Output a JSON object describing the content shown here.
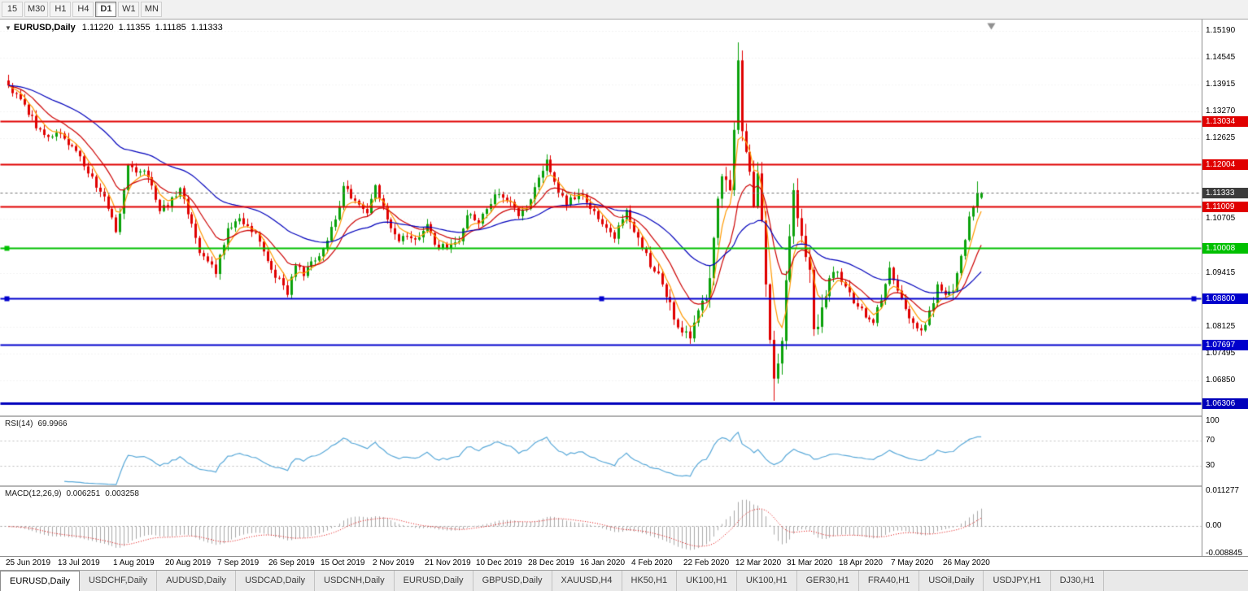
{
  "toolbar": {
    "timeframes": [
      "15",
      "M30",
      "H1",
      "H4",
      "D1",
      "W1",
      "MN"
    ],
    "active": "D1"
  },
  "chart": {
    "title": "EURUSD,Daily",
    "open": "1.11220",
    "high": "1.11355",
    "low": "1.11185",
    "close": "1.11333"
  },
  "price_axis": {
    "ticks": [
      "1.15190",
      "1.14545",
      "1.13915",
      "1.13270",
      "1.12625",
      "1.10705",
      "1.09415",
      "1.08125",
      "1.07495",
      "1.06850"
    ],
    "current_price": {
      "label": "1.11333",
      "value": 1.11333,
      "bg": "#3c3c3c"
    }
  },
  "levels": [
    {
      "price": 1.13034,
      "label": "1.13034",
      "color": "#e00000",
      "width": 2,
      "handles": []
    },
    {
      "price": 1.12004,
      "label": "1.12004",
      "color": "#e00000",
      "width": 2,
      "handles": []
    },
    {
      "price": 1.11009,
      "label": "1.11009",
      "color": "#e00000",
      "width": 2,
      "handles": []
    },
    {
      "price": 1.10008,
      "label": "1.10008",
      "color": "#00c000",
      "width": 2,
      "handles": [
        "left"
      ]
    },
    {
      "price": 1.088,
      "label": "1.08800",
      "color": "#0000cc",
      "width": 2,
      "handles": [
        "left",
        "center",
        "right"
      ]
    },
    {
      "price": 1.07697,
      "label": "1.07697",
      "color": "#0000cc",
      "width": 2,
      "handles": []
    },
    {
      "price": 1.06306,
      "label": "1.06306",
      "color": "#0000bb",
      "width": 3,
      "handles": []
    }
  ],
  "rsi_panel": {
    "name": "RSI(14)",
    "value": "69.9966",
    "axis": [
      100,
      70,
      30
    ],
    "guide_levels": [
      70,
      30
    ],
    "line_color": "#58a8d8"
  },
  "macd_panel": {
    "name": "MACD(12,26,9)",
    "value_main": "0.006251",
    "value_signal": "0.003258",
    "axis": [
      "0.011277",
      "0.00",
      "-0.008845"
    ],
    "histogram_color": "#a8a8a8",
    "signal_color": "#e00000"
  },
  "time_axis": {
    "labels": [
      [
        0,
        "25 Jun 2019"
      ],
      [
        13,
        "13 Jul 2019"
      ],
      [
        27,
        "1 Aug 2019"
      ],
      [
        40,
        "20 Aug 2019"
      ],
      [
        53,
        "7 Sep 2019"
      ],
      [
        66,
        "26 Sep 2019"
      ],
      [
        79,
        "15 Oct 2019"
      ],
      [
        92,
        "2 Nov 2019"
      ],
      [
        105,
        "21 Nov 2019"
      ],
      [
        118,
        "10 Dec 2019"
      ],
      [
        131,
        "28 Dec 2019"
      ],
      [
        144,
        "16 Jan 2020"
      ],
      [
        157,
        "4 Feb 2020"
      ],
      [
        170,
        "22 Feb 2020"
      ],
      [
        183,
        "12 Mar 2020"
      ],
      [
        196,
        "31 Mar 2020"
      ],
      [
        209,
        "18 Apr 2020"
      ],
      [
        222,
        "7 May 2020"
      ],
      [
        235,
        "26 May 2020"
      ]
    ]
  },
  "tabs": [
    {
      "label": "EURUSD,Daily",
      "active": true
    },
    {
      "label": "USDCHF,Daily"
    },
    {
      "label": "AUDUSD,Daily"
    },
    {
      "label": "USDCAD,Daily"
    },
    {
      "label": "USDCNH,Daily"
    },
    {
      "label": "EURUSD,Daily"
    },
    {
      "label": "GBPUSD,Daily"
    },
    {
      "label": "XAUUSD,H4"
    },
    {
      "label": "HK50,H1"
    },
    {
      "label": "UK100,H1"
    },
    {
      "label": "UK100,H1"
    },
    {
      "label": "GER30,H1"
    },
    {
      "label": "FRA40,H1"
    },
    {
      "label": "USOil,Daily"
    },
    {
      "label": "USDJPY,H1"
    },
    {
      "label": "DJ30,H1"
    }
  ],
  "chart_data": {
    "type": "candlestick",
    "symbol": "EURUSD",
    "timeframe": "Daily",
    "title": "EURUSD,Daily",
    "last_ohlc": {
      "open": 1.1122,
      "high": 1.11355,
      "low": 1.11185,
      "close": 1.11333
    },
    "y_range": [
      1.0605,
      1.1537
    ],
    "bars": 245,
    "x_start": 10,
    "x_step": 4.9,
    "close_waypoints": [
      [
        0,
        1.139
      ],
      [
        2,
        1.137
      ],
      [
        5,
        1.132
      ],
      [
        8,
        1.1285
      ],
      [
        11,
        1.1268
      ],
      [
        13,
        1.1275
      ],
      [
        16,
        1.1245
      ],
      [
        18,
        1.1221
      ],
      [
        20,
        1.118
      ],
      [
        22,
        1.1146
      ],
      [
        24,
        1.1125
      ],
      [
        26,
        1.1075
      ],
      [
        27,
        1.104
      ],
      [
        28,
        1.1084
      ],
      [
        30,
        1.12
      ],
      [
        33,
        1.1185
      ],
      [
        35,
        1.1171
      ],
      [
        38,
        1.109
      ],
      [
        40,
        1.11
      ],
      [
        43,
        1.1145
      ],
      [
        46,
        1.106
      ],
      [
        48,
        1.099
      ],
      [
        50,
        1.097
      ],
      [
        52,
        1.094
      ],
      [
        55,
        1.1049
      ],
      [
        58,
        1.1073
      ],
      [
        61,
        1.104
      ],
      [
        63,
        1.1017
      ],
      [
        66,
        1.095
      ],
      [
        68,
        1.093
      ],
      [
        70,
        1.089
      ],
      [
        72,
        1.096
      ],
      [
        74,
        1.0935
      ],
      [
        76,
        1.097
      ],
      [
        79,
        1.1
      ],
      [
        82,
        1.107
      ],
      [
        84,
        1.115
      ],
      [
        87,
        1.1115
      ],
      [
        90,
        1.1085
      ],
      [
        92,
        1.1152
      ],
      [
        95,
        1.107
      ],
      [
        98,
        1.1018
      ],
      [
        100,
        1.103
      ],
      [
        102,
        1.1022
      ],
      [
        105,
        1.1059
      ],
      [
        107,
        1.101
      ],
      [
        110,
        1.1
      ],
      [
        113,
        1.1018
      ],
      [
        115,
        1.108
      ],
      [
        118,
        1.106
      ],
      [
        120,
        1.1095
      ],
      [
        122,
        1.113
      ],
      [
        125,
        1.1115
      ],
      [
        128,
        1.1078
      ],
      [
        131,
        1.1118
      ],
      [
        133,
        1.117
      ],
      [
        135,
        1.1213
      ],
      [
        137,
        1.116
      ],
      [
        140,
        1.1105
      ],
      [
        143,
        1.113
      ],
      [
        145,
        1.111
      ],
      [
        147,
        1.109
      ],
      [
        150,
        1.105
      ],
      [
        152,
        1.1024
      ],
      [
        155,
        1.1093
      ],
      [
        157,
        1.104
      ],
      [
        159,
        1.1
      ],
      [
        162,
        1.0946
      ],
      [
        164,
        1.0915
      ],
      [
        167,
        1.0831
      ],
      [
        169,
        1.08
      ],
      [
        171,
        1.0786
      ],
      [
        173,
        1.0853
      ],
      [
        175,
        1.088
      ],
      [
        177,
        1.1026
      ],
      [
        179,
        1.1173
      ],
      [
        181,
        1.114
      ],
      [
        182,
        1.1284
      ],
      [
        183,
        1.145
      ],
      [
        184,
        1.1281
      ],
      [
        186,
        1.1184
      ],
      [
        187,
        1.11
      ],
      [
        188,
        1.118
      ],
      [
        190,
        1.0915
      ],
      [
        192,
        1.069
      ],
      [
        193,
        1.0726
      ],
      [
        194,
        1.078
      ],
      [
        196,
        1.103
      ],
      [
        197,
        1.114
      ],
      [
        199,
        1.1031
      ],
      [
        201,
        1.095
      ],
      [
        202,
        1.0808
      ],
      [
        204,
        1.086
      ],
      [
        206,
        1.093
      ],
      [
        208,
        1.0945
      ],
      [
        210,
        1.091
      ],
      [
        212,
        1.087
      ],
      [
        214,
        1.0858
      ],
      [
        217,
        1.0823
      ],
      [
        219,
        1.0877
      ],
      [
        221,
        1.0955
      ],
      [
        223,
        1.09
      ],
      [
        226,
        1.0834
      ],
      [
        228,
        1.081
      ],
      [
        230,
        1.0818
      ],
      [
        232,
        1.087
      ],
      [
        233,
        1.0915
      ],
      [
        235,
        1.089
      ],
      [
        237,
        1.09
      ],
      [
        239,
        1.0983
      ],
      [
        240,
        1.1021
      ],
      [
        241,
        1.1077
      ],
      [
        242,
        1.1101
      ],
      [
        243,
        1.1134
      ],
      [
        244,
        1.11333
      ]
    ],
    "volatility": [
      {
        "from": 0,
        "vol": 0.0016
      },
      {
        "from": 155,
        "vol": 0.0024
      },
      {
        "from": 176,
        "vol": 0.004
      },
      {
        "from": 206,
        "vol": 0.002
      }
    ],
    "wick_overrides": {
      "183": {
        "high": 1.1493
      },
      "192": {
        "low": 1.0637
      },
      "243": {
        "high": 1.1161
      },
      "244": {
        "open": 1.1122,
        "high": 1.11355,
        "low": 1.11185,
        "close": 1.11333
      }
    },
    "moving_averages": [
      {
        "period": 5,
        "color": "#ff9900"
      },
      {
        "period": 13,
        "color": "#cc0000"
      },
      {
        "period": 40,
        "color": "#0000bb"
      }
    ],
    "indicators": [
      {
        "type": "RSI",
        "period": 14,
        "current": 69.9966,
        "levels": [
          70,
          30
        ],
        "axis_range": [
          0,
          106
        ]
      },
      {
        "type": "MACD",
        "fast": 12,
        "slow": 26,
        "signal": 9,
        "current_main": 0.006251,
        "current_signal": 0.003258,
        "axis_range": [
          -0.0095,
          0.0125
        ]
      }
    ],
    "style": {
      "up": "#0aa10a",
      "down": "#e00000",
      "grid": "#e4e4e4",
      "current_line": "#707070",
      "shift_marker": "#909090"
    }
  }
}
